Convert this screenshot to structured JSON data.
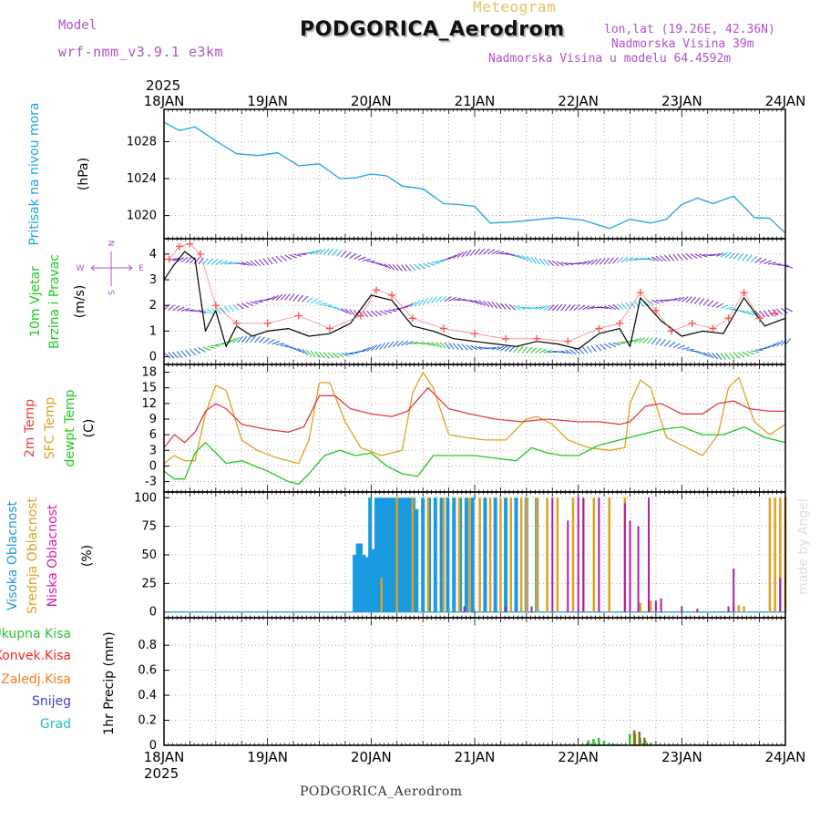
{
  "header": {
    "model_label": "Model",
    "model_name": "wrf-nmm_v3.9.1  e3km",
    "subtitle": "Meteogram",
    "station_title": "PODGORICA_Aerodrom",
    "coords": "lon,lat (19.26E, 42.36N)",
    "elevation": "Nadmorska Visina 39m",
    "model_elevation": "Nadmorska Visina u modelu 64.4592m",
    "credit": "made by Angel",
    "footer_station": "PODGORICA_Aerodrom"
  },
  "colors": {
    "pressure": "#1aa3e6",
    "temp2m": "#e83b3b",
    "sfc_temp": "#e0a020",
    "dewpoint": "#1ec81e",
    "wind_speed": "#000000",
    "gust_marker": "#ff5050",
    "high_cloud": "#1a9ae0",
    "mid_cloud": "#e0a020",
    "low_cloud": "#b01ab0",
    "total_precip": "#2fbf2f",
    "conv_precip": "#ff2020",
    "frozen_precip": "#ff7a1a",
    "snow": "#3a3ae0",
    "graupel": "#20c0c0",
    "model_text": "#b050d0",
    "title_gold": "#e8c060"
  },
  "time_axis": {
    "year_top": "2025",
    "year_bottom": "2025",
    "labels": [
      "18JAN",
      "19JAN",
      "20JAN",
      "21JAN",
      "22JAN",
      "23JAN",
      "24JAN"
    ]
  },
  "chart_data": [
    {
      "id": "pressure",
      "type": "line",
      "ylabel": "Pritisak na nivou mora",
      "unit": "(hPa)",
      "ylim": [
        1017.5,
        1031.5
      ],
      "yticks": [
        1020,
        1024,
        1028
      ],
      "series": [
        {
          "name": "MSLP",
          "x": [
            0,
            0.15,
            0.3,
            0.5,
            0.7,
            0.9,
            1.1,
            1.3,
            1.5,
            1.7,
            1.85,
            2.0,
            2.15,
            2.3,
            2.5,
            2.7,
            2.85,
            3.0,
            3.15,
            3.35,
            3.55,
            3.8,
            4.05,
            4.3,
            4.5,
            4.7,
            4.85,
            5.0,
            5.15,
            5.3,
            5.5,
            5.7,
            5.85,
            6.0
          ],
          "values": [
            1030.1,
            1029.2,
            1029.6,
            1028.1,
            1026.7,
            1026.5,
            1026.8,
            1025.4,
            1025.6,
            1024.0,
            1024.1,
            1024.5,
            1024.3,
            1023.2,
            1022.9,
            1021.3,
            1021.2,
            1021.0,
            1019.2,
            1019.3,
            1019.5,
            1019.8,
            1019.5,
            1018.6,
            1019.6,
            1019.2,
            1019.6,
            1021.2,
            1021.9,
            1021.3,
            1022.1,
            1019.8,
            1019.7,
            1018.1
          ]
        }
      ]
    },
    {
      "id": "wind",
      "type": "line",
      "ylabel": "10m Vjetar",
      "ylabel2": "Brzina i Pravac",
      "unit": "(m/s)",
      "compass": [
        "N",
        "W",
        "E",
        "S"
      ],
      "ylim": [
        -0.3,
        4.6
      ],
      "yticks": [
        0,
        1,
        2,
        3,
        4
      ],
      "series": [
        {
          "name": "wind speed",
          "x": [
            0,
            0.1,
            0.2,
            0.3,
            0.4,
            0.5,
            0.6,
            0.7,
            0.85,
            1.0,
            1.2,
            1.4,
            1.6,
            1.8,
            2.0,
            2.2,
            2.4,
            2.6,
            2.8,
            3.0,
            3.2,
            3.4,
            3.6,
            3.8,
            4.0,
            4.2,
            4.4,
            4.5,
            4.6,
            4.8,
            5.0,
            5.2,
            5.4,
            5.6,
            5.8,
            6.0
          ],
          "values": [
            3.0,
            3.6,
            4.1,
            3.8,
            1.0,
            1.8,
            0.4,
            1.2,
            0.8,
            1.0,
            1.1,
            0.8,
            0.9,
            1.3,
            2.4,
            2.2,
            1.2,
            1.0,
            0.7,
            0.6,
            0.5,
            0.4,
            0.6,
            0.5,
            0.3,
            0.9,
            1.1,
            0.4,
            2.3,
            1.4,
            0.8,
            1.0,
            0.9,
            2.3,
            1.2,
            1.5
          ]
        },
        {
          "name": "wind gusts",
          "x": [
            0.05,
            0.15,
            0.25,
            0.35,
            0.5,
            0.7,
            1.0,
            1.3,
            1.6,
            1.9,
            2.05,
            2.2,
            2.4,
            2.7,
            3.0,
            3.3,
            3.6,
            3.9,
            4.2,
            4.4,
            4.6,
            4.75,
            4.9,
            5.1,
            5.3,
            5.45,
            5.6,
            5.75,
            5.9
          ],
          "values": [
            3.8,
            4.3,
            4.4,
            4.0,
            2.0,
            1.3,
            1.3,
            1.6,
            1.1,
            1.6,
            2.6,
            2.4,
            1.5,
            1.1,
            0.9,
            0.7,
            0.7,
            0.6,
            1.1,
            1.3,
            2.5,
            1.8,
            1.0,
            1.3,
            1.1,
            1.5,
            2.5,
            1.5,
            1.7
          ]
        }
      ],
      "barb_rows": [
        {
          "y": 3.8,
          "color_start": "#7a20c8",
          "color_end": "#1ab0e0"
        },
        {
          "y": 2.0,
          "color_start": "#7a20c8",
          "color_end": "#20c8e0"
        },
        {
          "y": 0.35,
          "color_start": "#1a60e0",
          "color_end": "#1ec81e"
        }
      ]
    },
    {
      "id": "temperature",
      "type": "line",
      "ylabel": "2m Temp",
      "ylabel2": "SFC Temp",
      "ylabel3": "dewpt Temp",
      "unit": "(C)",
      "ylim": [
        -5,
        19.5
      ],
      "yticks": [
        -3,
        0,
        3,
        6,
        9,
        12,
        15,
        18
      ],
      "series": [
        {
          "name": "2m Temp",
          "x": [
            0,
            0.1,
            0.2,
            0.3,
            0.4,
            0.5,
            0.6,
            0.75,
            1.0,
            1.2,
            1.35,
            1.5,
            1.65,
            1.8,
            2.0,
            2.2,
            2.35,
            2.55,
            2.75,
            2.95,
            3.2,
            3.45,
            3.7,
            4.0,
            4.2,
            4.4,
            4.5,
            4.65,
            4.8,
            5.0,
            5.2,
            5.35,
            5.5,
            5.65,
            5.85,
            6.0
          ],
          "values": [
            3.5,
            6.0,
            4.5,
            6.5,
            10.5,
            12.0,
            11.0,
            8.0,
            7.0,
            6.5,
            7.5,
            13.5,
            13.5,
            11.0,
            10.0,
            9.5,
            10.5,
            15.0,
            11.0,
            10.0,
            9.0,
            8.5,
            9.0,
            8.5,
            8.5,
            8.0,
            8.5,
            11.5,
            12.0,
            10.0,
            10.0,
            12.0,
            12.5,
            11.0,
            10.5,
            10.5
          ]
        },
        {
          "name": "SFC Temp",
          "x": [
            0,
            0.1,
            0.2,
            0.3,
            0.4,
            0.5,
            0.6,
            0.75,
            0.9,
            1.1,
            1.3,
            1.4,
            1.5,
            1.6,
            1.75,
            1.9,
            2.1,
            2.3,
            2.4,
            2.5,
            2.6,
            2.75,
            2.9,
            3.1,
            3.3,
            3.5,
            3.6,
            3.75,
            3.9,
            4.1,
            4.3,
            4.45,
            4.5,
            4.6,
            4.7,
            4.85,
            5.0,
            5.2,
            5.35,
            5.45,
            5.55,
            5.7,
            5.85,
            6.0
          ],
          "values": [
            0.5,
            2.0,
            1.0,
            1.0,
            10.0,
            15.5,
            14.5,
            5.0,
            3.0,
            1.5,
            0.5,
            5.0,
            16.0,
            16.0,
            8.5,
            3.5,
            2.0,
            3.0,
            14.0,
            18.0,
            15.0,
            6.0,
            5.5,
            5.0,
            5.0,
            9.0,
            9.5,
            8.0,
            5.0,
            3.5,
            3.0,
            3.5,
            12.0,
            16.5,
            15.0,
            5.5,
            4.0,
            2.0,
            6.0,
            15.0,
            17.0,
            8.5,
            6.0,
            8.0
          ]
        },
        {
          "name": "dewpt Temp",
          "x": [
            0,
            0.1,
            0.2,
            0.3,
            0.4,
            0.5,
            0.6,
            0.75,
            1.0,
            1.2,
            1.3,
            1.4,
            1.55,
            1.7,
            1.85,
            2.0,
            2.15,
            2.3,
            2.45,
            2.6,
            2.8,
            3.0,
            3.2,
            3.4,
            3.55,
            3.7,
            3.85,
            4.0,
            4.2,
            4.4,
            4.6,
            4.8,
            5.0,
            5.2,
            5.4,
            5.6,
            5.8,
            6.0
          ],
          "values": [
            -1.0,
            -2.5,
            -2.5,
            2.5,
            4.5,
            2.5,
            0.5,
            1.0,
            -1.0,
            -3.0,
            -3.5,
            -1.5,
            2.0,
            3.0,
            2.0,
            2.5,
            0.0,
            -1.5,
            -2.0,
            2.0,
            2.0,
            2.0,
            1.5,
            1.0,
            3.5,
            2.5,
            2.0,
            2.0,
            4.0,
            5.0,
            6.0,
            7.0,
            7.5,
            6.0,
            6.0,
            7.5,
            5.5,
            4.5
          ]
        }
      ]
    },
    {
      "id": "cloud",
      "type": "bar",
      "ylabel": "Visoka Oblacnost",
      "ylabel2": "Srednja Oblacnost",
      "ylabel3": "Niska Oblacnost",
      "unit": "(%)",
      "ylim": [
        -5,
        105
      ],
      "yticks": [
        0,
        25,
        50,
        75,
        100
      ],
      "series": [
        {
          "name": "Visoka Oblacnost",
          "x": [
            1.84,
            1.87,
            1.9,
            1.93,
            1.96,
            1.99,
            2.02,
            2.05,
            2.08,
            2.11,
            2.14,
            2.17,
            2.2,
            2.23,
            2.26,
            2.29,
            2.32,
            2.35,
            2.38,
            2.41,
            2.44,
            2.5,
            2.56,
            2.62,
            2.68,
            2.74,
            2.8,
            2.86,
            2.92,
            2.98,
            3.1,
            3.2,
            3.3,
            3.4,
            3.5,
            3.6
          ],
          "values": [
            50,
            60,
            60,
            50,
            48,
            100,
            55,
            100,
            100,
            100,
            100,
            100,
            100,
            100,
            100,
            100,
            100,
            100,
            100,
            100,
            90,
            100,
            100,
            100,
            100,
            100,
            100,
            100,
            100,
            100,
            100,
            100,
            100,
            100,
            100,
            100
          ]
        },
        {
          "name": "Srednja Oblacnost",
          "x": [
            2.1,
            2.25,
            2.4,
            2.55,
            2.7,
            2.85,
            2.95,
            3.05,
            3.15,
            3.25,
            3.35,
            3.45,
            3.5,
            3.6,
            3.7,
            3.8,
            3.95,
            4.05,
            4.15,
            4.3,
            4.45,
            4.6,
            4.7,
            5.5,
            5.55,
            5.6,
            5.85,
            5.9,
            5.95,
            6.0
          ],
          "values": [
            30,
            100,
            100,
            100,
            100,
            100,
            100,
            100,
            100,
            100,
            100,
            100,
            100,
            100,
            100,
            100,
            100,
            100,
            100,
            100,
            100,
            8,
            10,
            8,
            6,
            5,
            100,
            100,
            100,
            100
          ]
        },
        {
          "name": "Niska Oblacnost",
          "x": [
            2.9,
            3.3,
            3.55,
            3.75,
            3.9,
            4.0,
            4.05,
            4.2,
            4.45,
            4.5,
            4.58,
            4.68,
            4.75,
            4.8,
            5.0,
            5.15,
            5.45,
            5.5,
            5.95
          ],
          "values": [
            5,
            5,
            5,
            100,
            80,
            100,
            100,
            100,
            95,
            80,
            75,
            100,
            10,
            12,
            5,
            3,
            5,
            38,
            30
          ]
        }
      ]
    },
    {
      "id": "precip",
      "type": "bar",
      "ylabel": "1hr Precip",
      "unit": "(mm)",
      "legend": [
        "Ukupna Kisa",
        "Konvek.Kisa",
        "Zaledj.Kisa",
        "Snijeg",
        "Grad"
      ],
      "ylim": [
        0,
        1.02
      ],
      "yticks": [
        0,
        0.2,
        0.4,
        0.6,
        0.8
      ],
      "series": [
        {
          "name": "Ukupna Kisa",
          "x": [
            4.05,
            4.1,
            4.15,
            4.2,
            4.25,
            4.3,
            4.35,
            4.5,
            4.55,
            4.6,
            4.65,
            4.7
          ],
          "values": [
            0.01,
            0.04,
            0.05,
            0.06,
            0.03,
            0.02,
            0.01,
            0.09,
            0.1,
            0.06,
            0.04,
            0.02
          ]
        },
        {
          "name": "Konvek.Kisa",
          "x": [
            4.52,
            4.57,
            4.62
          ],
          "values": [
            0.12,
            0.11,
            0.06
          ]
        }
      ]
    }
  ]
}
